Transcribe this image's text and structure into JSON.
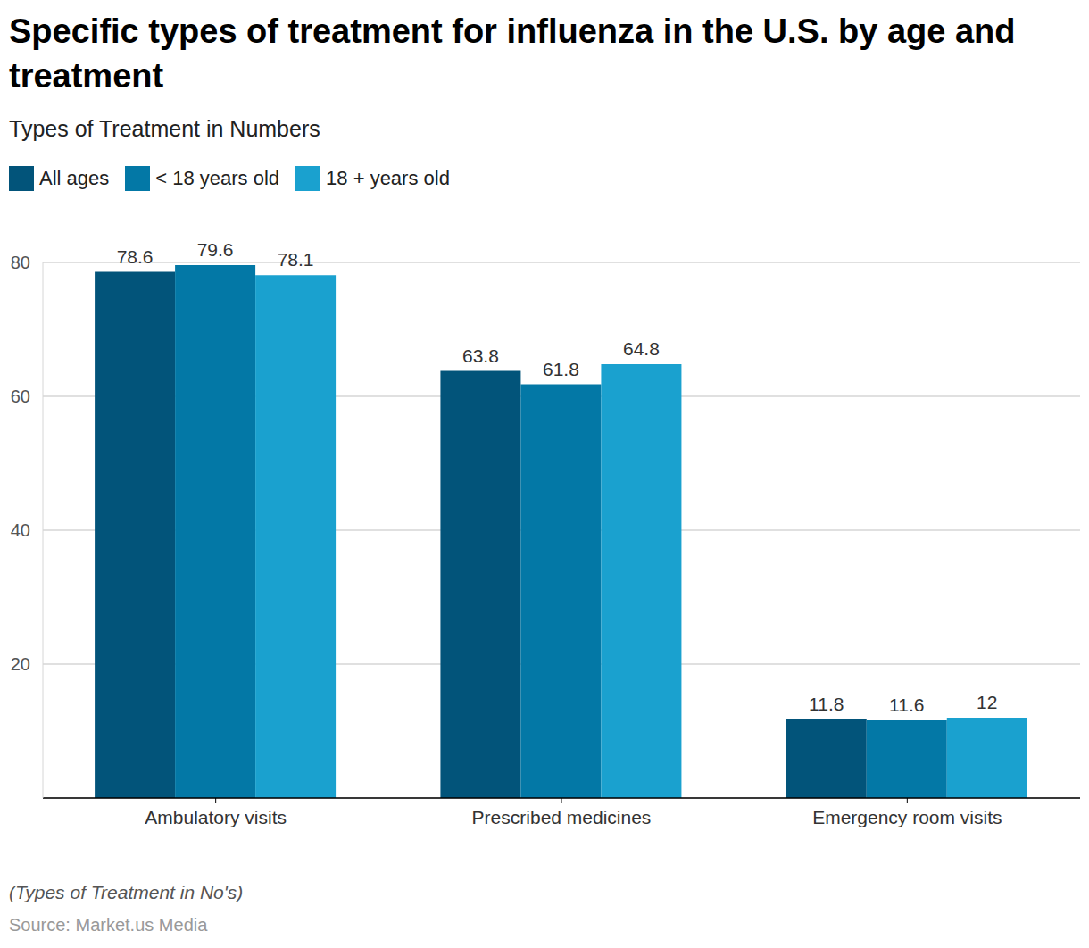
{
  "chart_data": {
    "type": "bar",
    "title": "Specific types of treatment for influenza in the U.S. by age and treatment",
    "subtitle": "Types of Treatment in Numbers",
    "note": "(Types of Treatment in No's)",
    "source": "Source: Market.us Media",
    "categories": [
      "Ambulatory visits",
      "Prescribed medicines",
      "Emergency room visits"
    ],
    "series": [
      {
        "name": "All ages",
        "color": "#02547a",
        "values": [
          78.6,
          63.8,
          11.8
        ]
      },
      {
        "name": "< 18 years old",
        "color": "#0378a6",
        "values": [
          79.6,
          61.8,
          11.6
        ]
      },
      {
        "name": "18 + years old",
        "color": "#1aa1cf",
        "values": [
          78.1,
          64.8,
          12
        ]
      }
    ],
    "ylim": [
      0,
      80
    ],
    "yticks": [
      20,
      40,
      60,
      80
    ],
    "grid": true,
    "legend": "top-left",
    "data_labels": true
  }
}
